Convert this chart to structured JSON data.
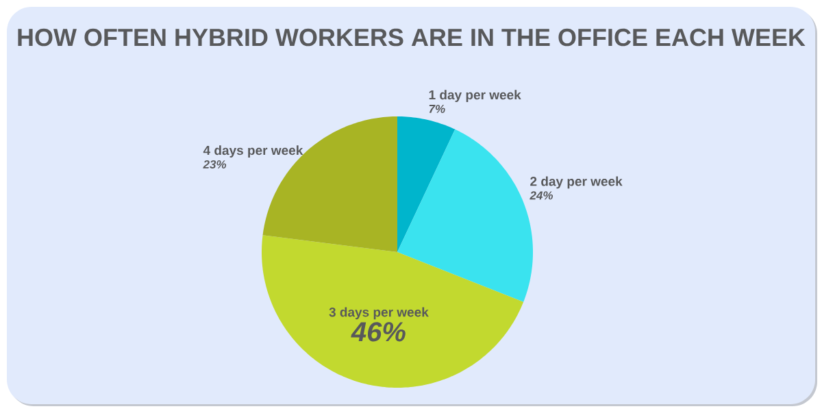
{
  "chart_data": {
    "type": "pie",
    "title": "HOW OFTEN HYBRID WORKERS ARE IN THE OFFICE EACH WEEK",
    "categories": [
      "1 day per week",
      "2 day per week",
      "3 days per week",
      "4 days per week"
    ],
    "values": [
      7,
      24,
      46,
      23
    ],
    "colors": [
      "#00b5cc",
      "#3ae3ef",
      "#c2d92f",
      "#a8b424"
    ],
    "value_labels": [
      "7%",
      "24%",
      "46%",
      "23%"
    ]
  }
}
